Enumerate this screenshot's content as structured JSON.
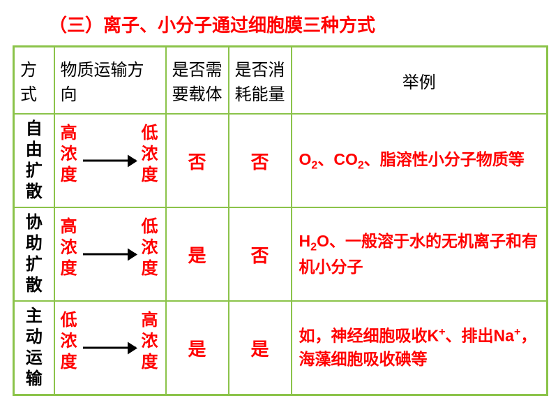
{
  "title": "（三）离子、小分子通过细胞膜三种方式",
  "headers": {
    "method": "方式",
    "direction": "物质运输方向",
    "carrier": "是否需要载体",
    "energy": "是否消耗能量",
    "example": "举例"
  },
  "rows": [
    {
      "method": "自由扩散",
      "dir_from": "高浓度",
      "dir_to": "低浓度",
      "carrier": "否",
      "energy": "否",
      "example_html": "O<sub>2</sub>、CO<sub>2</sub>、脂溶性小分子物质等"
    },
    {
      "method": "协助扩散",
      "dir_from": "高浓度",
      "dir_to": "低浓度",
      "carrier": "是",
      "energy": "否",
      "example_html": "H<sub>2</sub>O、一般溶于水的无机离子和有机小分子"
    },
    {
      "method": "主动运输",
      "dir_from": "低浓度",
      "dir_to": "高浓度",
      "carrier": "是",
      "energy": "是",
      "example_html": "如，神经细胞吸收K<sup>+</sup>、排出Na<sup>+</sup>，海藻细胞吸收碘等"
    }
  ],
  "colors": {
    "title": "#ff0000",
    "border": "#8bc34a",
    "content": "#ff0000",
    "header": "#000000",
    "arrow": "#000000",
    "background": "#ffffff"
  },
  "fonts": {
    "title_size": 26,
    "cell_size": 24,
    "example_size": 23
  }
}
